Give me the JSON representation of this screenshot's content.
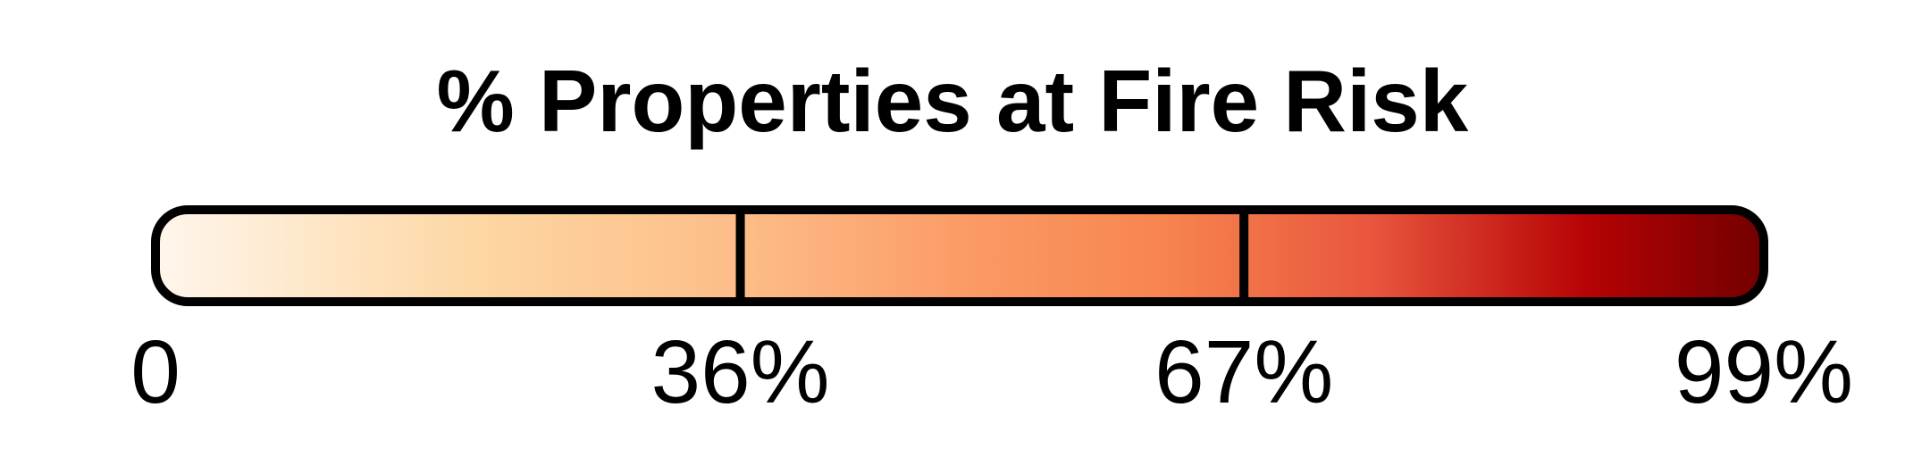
{
  "chart_data": {
    "type": "color-legend",
    "title": "% Properties at Fire Risk",
    "range": [
      0,
      99
    ],
    "ticks": [
      {
        "value": 0,
        "label": "0"
      },
      {
        "value": 36,
        "label": "36%"
      },
      {
        "value": 67,
        "label": "67%"
      },
      {
        "value": 99,
        "label": "99%"
      }
    ],
    "dividers": [
      36,
      67
    ],
    "color_stops": [
      {
        "value": 0,
        "color": "#fff6ec"
      },
      {
        "value": 20,
        "color": "#fdd6a2"
      },
      {
        "value": 36,
        "color": "#fdbd88"
      },
      {
        "value": 50,
        "color": "#fb9a66"
      },
      {
        "value": 62,
        "color": "#f7854f"
      },
      {
        "value": 75,
        "color": "#e8553d"
      },
      {
        "value": 88,
        "color": "#b70305"
      },
      {
        "value": 99,
        "color": "#730000"
      }
    ],
    "outline_color": "#000000"
  }
}
